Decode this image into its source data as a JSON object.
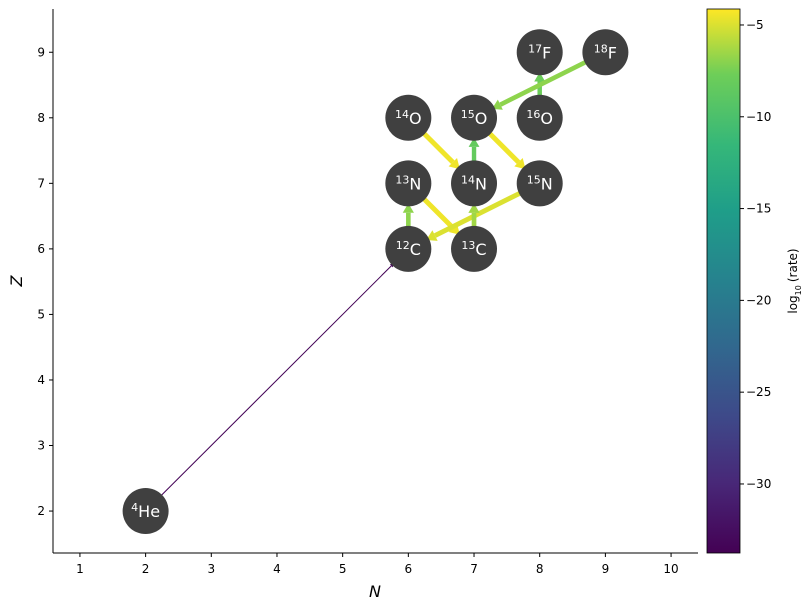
{
  "chart_data": {
    "type": "network",
    "xlabel": "N",
    "ylabel": "Z",
    "xlim": [
      0.59,
      10.41
    ],
    "ylim": [
      1.36,
      9.66
    ],
    "xticks": [
      1,
      2,
      3,
      4,
      5,
      6,
      7,
      8,
      9,
      10
    ],
    "yticks": [
      2,
      3,
      4,
      5,
      6,
      7,
      8,
      9
    ],
    "colormap": "viridis",
    "clim": [
      -33.76,
      -4.13
    ],
    "cticks": [
      {
        "value": -30,
        "label": "−30"
      },
      {
        "value": -25,
        "label": "−25"
      },
      {
        "value": -20,
        "label": "−20"
      },
      {
        "value": -15,
        "label": "−15"
      },
      {
        "value": -10,
        "label": "−10"
      },
      {
        "value": -5,
        "label": "−5"
      }
    ],
    "clabel": [
      "log",
      "10",
      "(rate)"
    ],
    "node_color": "#404040",
    "nodes": [
      {
        "mass": "4",
        "element": "He",
        "n": 2,
        "z": 2
      },
      {
        "mass": "12",
        "element": "C",
        "n": 6,
        "z": 6
      },
      {
        "mass": "13",
        "element": "C",
        "n": 7,
        "z": 6
      },
      {
        "mass": "13",
        "element": "N",
        "n": 6,
        "z": 7
      },
      {
        "mass": "14",
        "element": "N",
        "n": 7,
        "z": 7
      },
      {
        "mass": "15",
        "element": "N",
        "n": 8,
        "z": 7
      },
      {
        "mass": "14",
        "element": "O",
        "n": 6,
        "z": 8
      },
      {
        "mass": "15",
        "element": "O",
        "n": 7,
        "z": 8
      },
      {
        "mass": "16",
        "element": "O",
        "n": 8,
        "z": 8
      },
      {
        "mass": "17",
        "element": "F",
        "n": 8,
        "z": 9
      },
      {
        "mass": "18",
        "element": "F",
        "n": 9,
        "z": 9
      }
    ],
    "edges": [
      {
        "from": [
          2,
          2
        ],
        "to": [
          6,
          6
        ],
        "rate": -33.5
      },
      {
        "from": [
          6,
          8
        ],
        "to": [
          7,
          7
        ],
        "rate": -4.5
      },
      {
        "from": [
          6,
          7
        ],
        "to": [
          7,
          6
        ],
        "rate": -4.5
      },
      {
        "from": [
          7,
          8
        ],
        "to": [
          8,
          7
        ],
        "rate": -4.5
      },
      {
        "from": [
          8,
          7
        ],
        "to": [
          6,
          6
        ],
        "rate": -5
      },
      {
        "from": [
          6,
          6
        ],
        "to": [
          6,
          7
        ],
        "rate": -7
      },
      {
        "from": [
          7,
          6
        ],
        "to": [
          7,
          7
        ],
        "rate": -6.5
      },
      {
        "from": [
          7,
          7
        ],
        "to": [
          7,
          8
        ],
        "rate": -8.5
      },
      {
        "from": [
          8,
          8
        ],
        "to": [
          8,
          9
        ],
        "rate": -8
      },
      {
        "from": [
          9,
          9
        ],
        "to": [
          7,
          8
        ],
        "rate": -7
      }
    ]
  }
}
